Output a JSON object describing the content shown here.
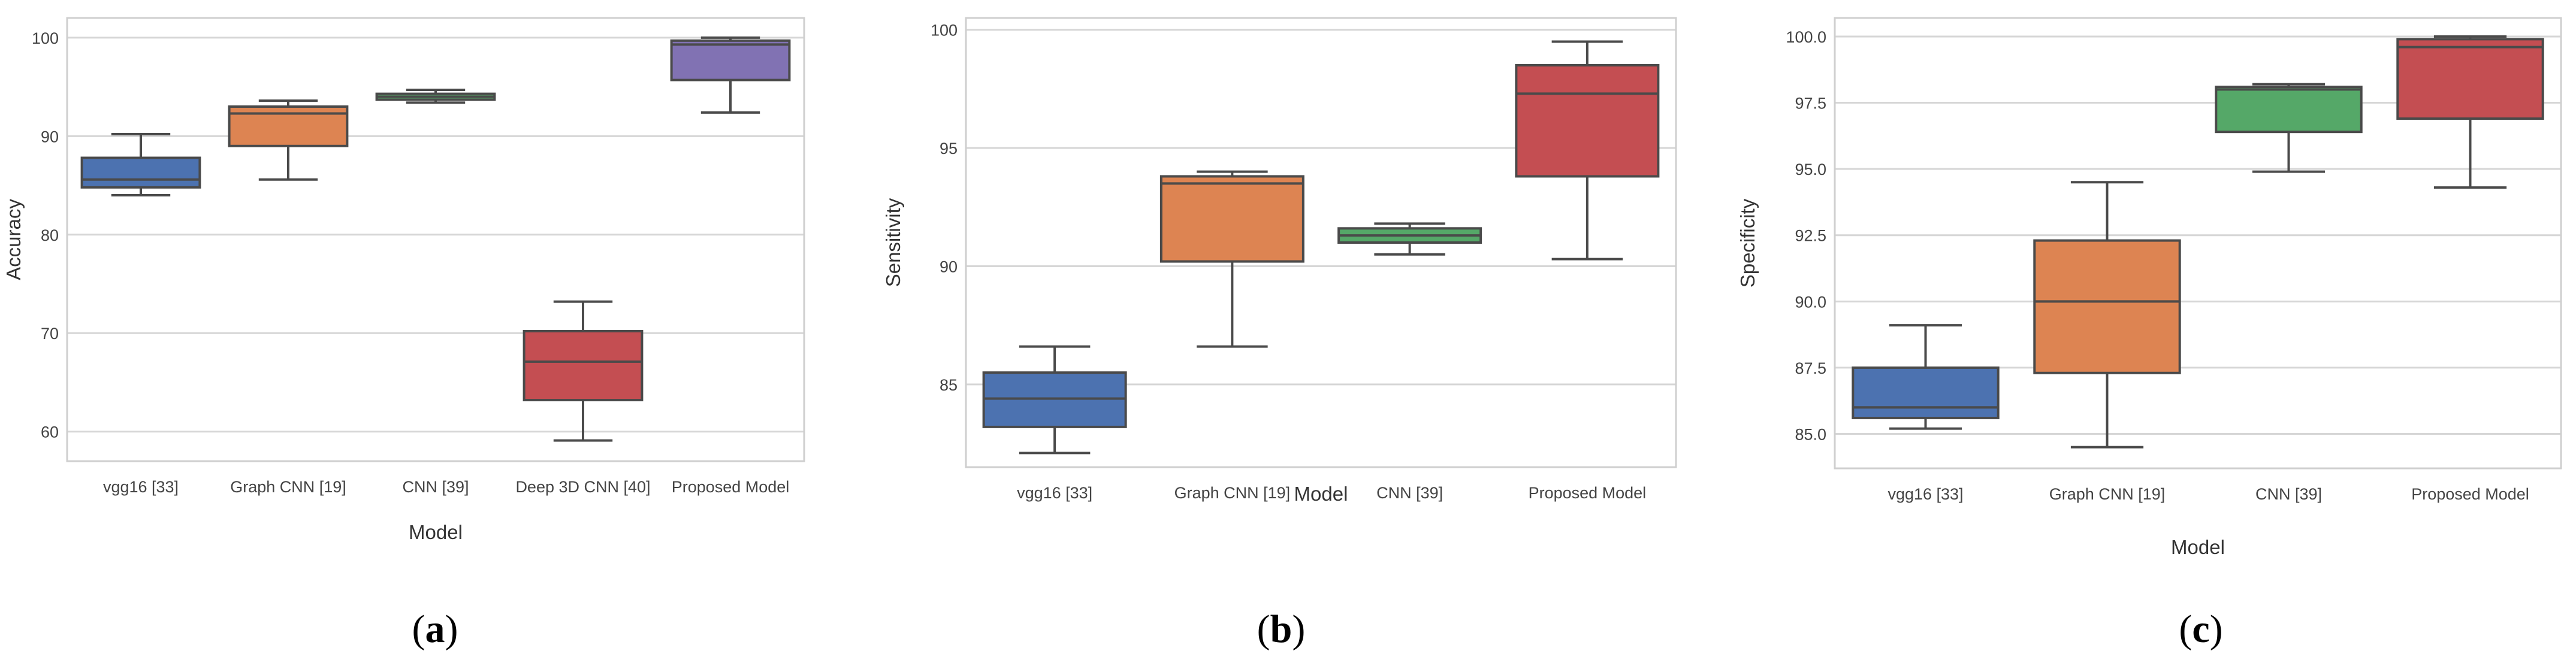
{
  "chart_data": [
    {
      "type": "box",
      "caption": "a",
      "xlabel": "Model",
      "ylabel": "Accuracy",
      "ylim": [
        57,
        102
      ],
      "yticks": [
        60,
        70,
        80,
        90,
        100
      ],
      "grid": "horizontal",
      "categories": [
        "vgg16 [33]",
        "Graph CNN [19]",
        "CNN [39]",
        "Deep 3D CNN [40]",
        "Proposed Model"
      ],
      "boxes": [
        {
          "min": 84.0,
          "q1": 84.8,
          "median": 85.6,
          "q3": 87.8,
          "max": 90.2,
          "color": "#4c72b0"
        },
        {
          "min": 85.6,
          "q1": 89.0,
          "median": 92.3,
          "q3": 93.0,
          "max": 93.6,
          "color": "#dd8452"
        },
        {
          "min": 93.4,
          "q1": 93.7,
          "median": 94.0,
          "q3": 94.3,
          "max": 94.7,
          "color": "#55a868"
        },
        {
          "min": 59.1,
          "q1": 63.2,
          "median": 67.1,
          "q3": 70.2,
          "max": 73.2,
          "color": "#c44e52"
        },
        {
          "min": 92.4,
          "q1": 95.7,
          "median": 99.3,
          "q3": 99.7,
          "max": 100.0,
          "color": "#8172b3"
        }
      ]
    },
    {
      "type": "box",
      "caption": "b",
      "xlabel": "Model",
      "ylabel": "Sensitivity",
      "ylim": [
        81.5,
        100.5
      ],
      "yticks": [
        85,
        90,
        95,
        100
      ],
      "grid": "horizontal",
      "categories": [
        "vgg16 [33]",
        "Graph CNN [19]",
        "CNN [39]",
        "Proposed Model"
      ],
      "boxes": [
        {
          "min": 82.1,
          "q1": 83.2,
          "median": 84.4,
          "q3": 85.5,
          "max": 86.6,
          "color": "#4c72b0"
        },
        {
          "min": 86.6,
          "q1": 90.2,
          "median": 93.5,
          "q3": 93.8,
          "max": 94.0,
          "color": "#dd8452"
        },
        {
          "min": 90.5,
          "q1": 91.0,
          "median": 91.3,
          "q3": 91.6,
          "max": 91.8,
          "color": "#55a868"
        },
        {
          "min": 90.3,
          "q1": 93.8,
          "median": 97.3,
          "q3": 98.5,
          "max": 99.5,
          "color": "#c44e52"
        }
      ]
    },
    {
      "type": "box",
      "caption": "c",
      "xlabel": "Model",
      "ylabel": "Specificity",
      "ylim": [
        83.7,
        100.7
      ],
      "yticks": [
        "85.0",
        "87.5",
        "90.0",
        "92.5",
        "95.0",
        "97.5",
        "100.0"
      ],
      "grid": "horizontal",
      "categories": [
        "vgg16 [33]",
        "Graph CNN [19]",
        "CNN [39]",
        "Proposed Model"
      ],
      "boxes": [
        {
          "min": 85.2,
          "q1": 85.6,
          "median": 86.0,
          "q3": 87.5,
          "max": 89.1,
          "color": "#4c72b0"
        },
        {
          "min": 84.5,
          "q1": 87.3,
          "median": 90.0,
          "q3": 92.3,
          "max": 94.5,
          "color": "#dd8452"
        },
        {
          "min": 94.9,
          "q1": 96.4,
          "median": 98.0,
          "q3": 98.1,
          "max": 98.2,
          "color": "#55a868"
        },
        {
          "min": 94.3,
          "q1": 96.9,
          "median": 99.6,
          "q3": 99.9,
          "max": 100.0,
          "color": "#c44e52"
        }
      ]
    }
  ]
}
